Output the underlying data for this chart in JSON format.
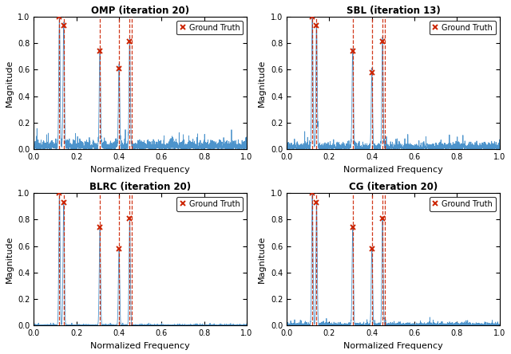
{
  "titles": [
    "OMP (iteration 20)",
    "SBL (iteration 13)",
    "BLRC (iteration 20)",
    "CG (iteration 20)"
  ],
  "peaks": {
    "omp": {
      "x": [
        0.12,
        0.14,
        0.31,
        0.4,
        0.45
      ],
      "y": [
        1.0,
        0.93,
        0.74,
        0.61,
        0.81
      ]
    },
    "sbl": {
      "x": [
        0.12,
        0.14,
        0.31,
        0.4,
        0.45
      ],
      "y": [
        1.0,
        0.93,
        0.74,
        0.58,
        0.81
      ]
    },
    "blrc": {
      "x": [
        0.12,
        0.14,
        0.31,
        0.4,
        0.45
      ],
      "y": [
        1.0,
        0.93,
        0.74,
        0.58,
        0.81
      ]
    },
    "cg": {
      "x": [
        0.12,
        0.14,
        0.31,
        0.4,
        0.45
      ],
      "y": [
        1.0,
        0.93,
        0.74,
        0.58,
        0.81
      ]
    }
  },
  "gt_dashed_lines": {
    "omp": [
      0.12,
      0.14,
      0.31,
      0.4,
      0.45,
      0.46
    ],
    "sbl": [
      0.12,
      0.14,
      0.31,
      0.4,
      0.45,
      0.46
    ],
    "blrc": [
      0.12,
      0.14,
      0.31,
      0.4,
      0.45,
      0.46
    ],
    "cg": [
      0.12,
      0.14,
      0.31,
      0.4,
      0.45,
      0.46
    ]
  },
  "gt_x_markers": {
    "omp": [
      0.12,
      0.14,
      0.31,
      0.4,
      0.45
    ],
    "sbl": [
      0.12,
      0.14,
      0.31,
      0.4,
      0.45
    ],
    "blrc": [
      0.12,
      0.14,
      0.31,
      0.4,
      0.45
    ],
    "cg": [
      0.12,
      0.14,
      0.31,
      0.4,
      0.45
    ]
  },
  "gt_y_markers": {
    "omp": [
      1.0,
      0.93,
      0.74,
      0.61,
      0.81
    ],
    "sbl": [
      1.0,
      0.93,
      0.74,
      0.58,
      0.81
    ],
    "blrc": [
      1.0,
      0.93,
      0.74,
      0.58,
      0.81
    ],
    "cg": [
      1.0,
      0.93,
      0.74,
      0.58,
      0.81
    ]
  },
  "noise_levels": {
    "omp": 0.055,
    "sbl": 0.04,
    "blrc": 0.008,
    "cg": 0.018
  },
  "line_color_blue": "#4d94cc",
  "line_color_red": "#cc2200",
  "xlim": [
    0,
    1
  ],
  "ylim": [
    0,
    1.05
  ],
  "xlabel": "Normalized Frequency",
  "ylabel": "Magnitude",
  "fig_width": 6.4,
  "fig_height": 4.44,
  "dpi": 100
}
